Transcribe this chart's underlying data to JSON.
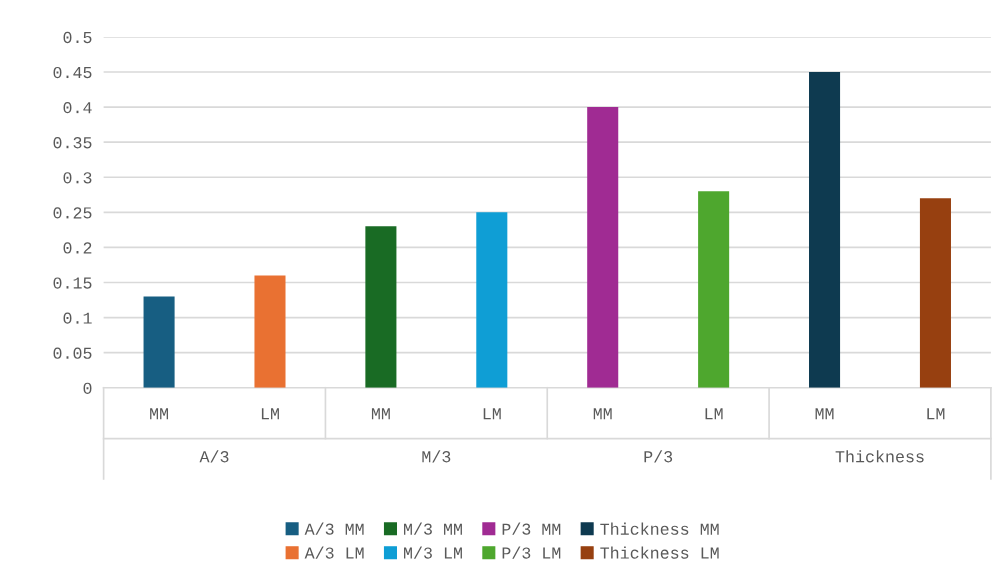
{
  "chart_data": {
    "type": "bar",
    "categories": [
      "MM",
      "LM",
      "MM",
      "LM",
      "MM",
      "LM",
      "MM",
      "LM"
    ],
    "annotations": [
      "A/3",
      "M/3",
      "P/3",
      "Thickness"
    ],
    "series": [
      {
        "name": "A/3 MM",
        "color": "#175e82",
        "values": [
          0.13,
          null,
          null,
          null,
          null,
          null,
          null,
          null
        ]
      },
      {
        "name": "A/3 LM",
        "color": "#e97132",
        "values": [
          null,
          0.16,
          null,
          null,
          null,
          null,
          null,
          null
        ]
      },
      {
        "name": "M/3 MM",
        "color": "#196b24",
        "values": [
          null,
          null,
          0.23,
          null,
          null,
          null,
          null,
          null
        ]
      },
      {
        "name": "M/3 LM",
        "color": "#0f9ed5",
        "values": [
          null,
          null,
          null,
          0.25,
          null,
          null,
          null,
          null
        ]
      },
      {
        "name": "P/3 MM",
        "color": "#a02b93",
        "values": [
          null,
          null,
          null,
          null,
          0.4,
          null,
          null,
          null
        ]
      },
      {
        "name": "P/3 LM",
        "color": "#4ea72e",
        "values": [
          null,
          null,
          null,
          null,
          null,
          0.28,
          null,
          null
        ]
      },
      {
        "name": "Thickness MM",
        "color": "#0e3a50",
        "values": [
          null,
          null,
          null,
          null,
          null,
          null,
          0.45,
          null
        ]
      },
      {
        "name": "Thickness LM",
        "color": "#974010",
        "values": [
          null,
          null,
          null,
          null,
          null,
          null,
          null,
          0.27
        ]
      }
    ],
    "ylim": [
      0,
      0.5
    ],
    "yticks": [
      0,
      0.05,
      0.1,
      0.15,
      0.2,
      0.25,
      0.3,
      0.35,
      0.4,
      0.45,
      0.5
    ],
    "grid": "y",
    "legend": "bottom"
  }
}
